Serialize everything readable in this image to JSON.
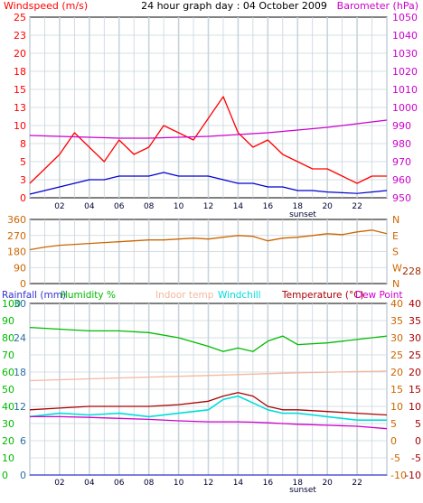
{
  "title": "24 hour graph day : 04 October 2009",
  "colors": {
    "grid_minor": "#c8d4dc",
    "grid_major": "#bfcfd8",
    "plot_border": "#000000",
    "windspeed": "#ff0000",
    "wind_avg": "#0000cc",
    "barometer": "#cc00cc",
    "wind_dir": "#cc6600",
    "rainfall": "#3333cc",
    "humidity": "#00bb00",
    "indoor_temp": "#f3b8a0",
    "windchill": "#00dddd",
    "temperature": "#aa0000",
    "dew_point": "#cc00cc",
    "temp_axis": "#cc6600",
    "rain_axis": "#2a6fa8"
  },
  "x_tick_labels": [
    "02",
    "04",
    "06",
    "08",
    "10",
    "12",
    "14",
    "16",
    "18",
    "20",
    "22"
  ],
  "sunset_label": "sunset",
  "chart_data": [
    {
      "type": "line",
      "panel": "wind",
      "left_axis": {
        "label": "Windspeed (m/s)",
        "ticks": [
          "0",
          "3",
          "5",
          "8",
          "10",
          "13",
          "15",
          "18",
          "20",
          "23",
          "25"
        ],
        "ylim": [
          0,
          25
        ]
      },
      "right_axis": {
        "label": "Barometer (hPa)",
        "ticks": [
          "950",
          "960",
          "970",
          "980",
          "990",
          "1000",
          "1010",
          "1020",
          "1030",
          "1040",
          "1050"
        ],
        "ylim": [
          950,
          1050
        ]
      },
      "series": [
        {
          "name": "Windspeed (m/s)",
          "x": [
            0,
            1,
            2,
            3,
            4,
            5,
            6,
            7,
            8,
            9,
            10,
            11,
            12,
            13,
            14,
            15,
            16,
            17,
            18,
            19,
            20,
            21,
            22,
            23,
            24
          ],
          "values": [
            2,
            4,
            6,
            9,
            7,
            5,
            8,
            6,
            7,
            10,
            9,
            8,
            11,
            14,
            9,
            7,
            8,
            6,
            5,
            4,
            4,
            3,
            2,
            3,
            3
          ]
        },
        {
          "name": "Wind average (m/s)",
          "x": [
            0,
            1,
            2,
            3,
            4,
            5,
            6,
            7,
            8,
            9,
            10,
            11,
            12,
            13,
            14,
            15,
            16,
            17,
            18,
            19,
            20,
            21,
            22,
            23,
            24
          ],
          "values": [
            0.5,
            1,
            1.5,
            2,
            2.5,
            2.5,
            3,
            3,
            3,
            3.5,
            3,
            3,
            3,
            2.5,
            2,
            2,
            1.5,
            1.5,
            1,
            1,
            0.8,
            0.7,
            0.6,
            0.8,
            1
          ]
        },
        {
          "name": "Barometer (hPa)",
          "x": [
            0,
            2,
            4,
            6,
            8,
            10,
            12,
            14,
            16,
            18,
            20,
            22,
            24
          ],
          "values": [
            984.5,
            984,
            983.5,
            983,
            983,
            983.5,
            984,
            985,
            986,
            987.5,
            989,
            991,
            993
          ]
        }
      ]
    },
    {
      "type": "line",
      "panel": "wind_direction",
      "left_axis": {
        "ticks": [
          "0",
          "90",
          "180",
          "270",
          "360"
        ],
        "ylim": [
          0,
          360
        ]
      },
      "right_axis": {
        "ticks": [
          "N",
          "W",
          "S",
          "E",
          "N"
        ]
      },
      "current_value_label": "228",
      "series": [
        {
          "name": "Wind direction (°)",
          "x": [
            0,
            1,
            2,
            3,
            4,
            5,
            6,
            7,
            8,
            9,
            10,
            11,
            12,
            13,
            14,
            15,
            16,
            17,
            18,
            19,
            20,
            21,
            22,
            23,
            24
          ],
          "values": [
            190,
            205,
            215,
            220,
            225,
            230,
            235,
            240,
            245,
            245,
            250,
            255,
            250,
            260,
            270,
            265,
            240,
            255,
            260,
            270,
            280,
            275,
            290,
            300,
            280
          ]
        }
      ]
    },
    {
      "type": "line",
      "panel": "temperature_humidity",
      "legend": [
        "Rainfall (mm)",
        "Humidity %",
        "Indoor temp",
        "Windchill",
        "Temperature (°C)",
        "Dew Point"
      ],
      "rain_axis": {
        "ticks": [
          "0",
          "6",
          "12",
          "18",
          "24",
          "30"
        ],
        "ylim": [
          0,
          30
        ]
      },
      "humidity_axis": {
        "ticks": [
          "0",
          "10",
          "20",
          "30",
          "40",
          "50",
          "60",
          "70",
          "80",
          "90",
          "100"
        ],
        "ylim": [
          0,
          100
        ]
      },
      "temp_axis": {
        "ticks": [
          "-10",
          "-5",
          "0",
          "5",
          "10",
          "15",
          "20",
          "25",
          "30",
          "35",
          "40"
        ],
        "ylim": [
          -10,
          40
        ]
      },
      "series": [
        {
          "name": "Humidity %",
          "x": [
            0,
            2,
            4,
            6,
            8,
            10,
            12,
            13,
            14,
            15,
            16,
            17,
            18,
            20,
            22,
            24
          ],
          "values": [
            86,
            85,
            84,
            84,
            83,
            80,
            75,
            72,
            74,
            72,
            78,
            81,
            76,
            77,
            79,
            81
          ]
        },
        {
          "name": "Indoor temp (°C)",
          "x": [
            0,
            6,
            12,
            18,
            24
          ],
          "values": [
            17.5,
            18.3,
            19,
            19.8,
            20.3
          ]
        },
        {
          "name": "Windchill (°C)",
          "x": [
            0,
            2,
            4,
            6,
            8,
            10,
            12,
            13,
            14,
            15,
            16,
            17,
            18,
            20,
            22,
            24
          ],
          "values": [
            7,
            8,
            7.5,
            8,
            7,
            8,
            9,
            12,
            13,
            11,
            9,
            8,
            8,
            7,
            6,
            6
          ]
        },
        {
          "name": "Temperature (°C)",
          "x": [
            0,
            2,
            4,
            6,
            8,
            10,
            12,
            13,
            14,
            15,
            16,
            17,
            18,
            20,
            22,
            24
          ],
          "values": [
            9,
            9.5,
            10,
            10,
            10,
            10.5,
            11.5,
            13,
            14,
            13,
            10,
            9,
            9,
            8.5,
            8,
            7.5
          ]
        },
        {
          "name": "Dew Point (°C)",
          "x": [
            0,
            2,
            4,
            6,
            8,
            10,
            12,
            13,
            14,
            15,
            16,
            17,
            18,
            20,
            22,
            24
          ],
          "values": [
            7,
            7,
            6.8,
            6.5,
            6.2,
            5.8,
            5.5,
            5.5,
            5.5,
            5.4,
            5.2,
            5,
            4.8,
            4.5,
            4.2,
            3.5
          ]
        },
        {
          "name": "Rainfall (mm)",
          "x": [
            0,
            24
          ],
          "values": [
            0,
            0
          ]
        }
      ]
    }
  ]
}
